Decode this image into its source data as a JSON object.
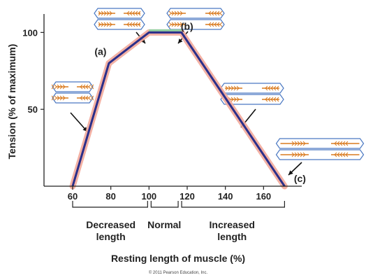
{
  "chart_data": {
    "type": "line",
    "title": "",
    "xlabel": "Resting length of muscle (%)",
    "ylabel": "Tension (% of maximum)",
    "xlim": [
      45,
      180
    ],
    "ylim": [
      0,
      112
    ],
    "x_ticks": [
      "60",
      "80",
      "100",
      "120",
      "140",
      "160"
    ],
    "y_ticks": [
      "50",
      "100"
    ],
    "grid": false,
    "series": [
      {
        "name": "",
        "color": "#2b2f8a",
        "halo_color": "#f2a89a",
        "x": [
          60,
          79,
          100,
          117,
          171
        ],
        "y": [
          0,
          80,
          100,
          100,
          0
        ]
      }
    ],
    "points": [
      {
        "label": "(a)",
        "x": 79,
        "y": 80
      },
      {
        "label": "(b)",
        "x": 117,
        "y": 100
      },
      {
        "label": "(c)",
        "x": 171,
        "y": 0
      }
    ],
    "regions": [
      {
        "lines": [
          "Decreased",
          "length"
        ],
        "from": 60,
        "to": 100
      },
      {
        "lines": [
          "Normal"
        ],
        "from": 100,
        "to": 116
      },
      {
        "lines": [
          "Increased",
          "length"
        ],
        "from": 116,
        "to": 171
      }
    ],
    "copyright": "© 2011 Pearson Education, Inc."
  },
  "colors": {
    "myosin": "#d97a1e",
    "actin": "#d97a1e",
    "membrane": "#4a78c2",
    "plateau": "#8fd0a0"
  }
}
